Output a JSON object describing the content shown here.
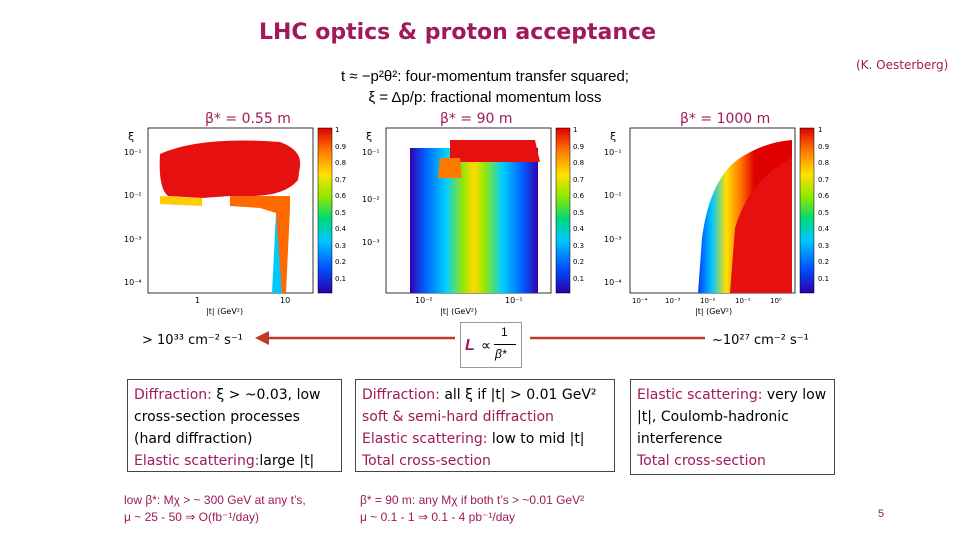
{
  "slide": {
    "title": "LHC optics & proton acceptance",
    "attribution": "(K. Oesterberg)",
    "definitions": {
      "line1": "t ≈ −p²θ²: four-momentum transfer squared;",
      "line2": "ξ = Δp/p: fractional momentum loss"
    },
    "beta_labels": [
      "β* = 0.55 m",
      "β* = 90 m",
      "β* = 1000 m"
    ],
    "luminosity": {
      "high": "> 10³³ cm⁻² s⁻¹",
      "low": "~10²⁷ cm⁻² s⁻¹",
      "formula_L": "L",
      "formula_prop": "∝",
      "formula_num": "1",
      "formula_den": "β*"
    },
    "panels": [
      {
        "lines": [
          {
            "colored": "Diffraction:",
            "rest": " ξ > ~0.03, low"
          },
          {
            "colored": "",
            "rest": "cross-section processes"
          },
          {
            "colored": "",
            "rest": "(hard diffraction)"
          },
          {
            "colored": "Elastic scattering:",
            "rest": "large |t|"
          }
        ]
      },
      {
        "lines": [
          {
            "colored": "Diffraction:",
            "rest": " all ξ if |t| > 0.01 GeV²"
          },
          {
            "colored": "",
            "rest": "soft & semi-hard diffraction"
          },
          {
            "colored": "Elastic scattering:",
            "rest": " low to mid |t|"
          },
          {
            "colored": "",
            "rest": "Total cross-section"
          }
        ]
      },
      {
        "lines": [
          {
            "colored": "Elastic scattering:",
            "rest": " very low"
          },
          {
            "colored": "",
            "rest": "|t|, Coulomb-hadronic"
          },
          {
            "colored": "",
            "rest": "interference"
          },
          {
            "colored": "",
            "rest": "Total cross-section"
          }
        ]
      }
    ],
    "footnotes": [
      {
        "line1": "low β*: Mχ > ~ 300 GeV at any t’s,",
        "line2": "μ ~ 25 - 50 ⇒ O(fb⁻¹/day)"
      },
      {
        "line1": "β* = 90 m: any Mχ if both t’s > ~0.01 GeV²",
        "line2": "μ ~ 0.1 - 1 ⇒ 0.1 - 4 pb⁻¹/day"
      }
    ],
    "page_number": "5",
    "plots": {
      "y_axis_label": "ξ",
      "x_axis_label": "|t|  (GeV²)",
      "colorbar_ticks": [
        "1",
        "0.9",
        "0.8",
        "0.7",
        "0.6",
        "0.5",
        "0.4",
        "0.3",
        "0.2",
        "0.1"
      ],
      "p1_y_ticks": [
        "10⁻¹",
        "10⁻²",
        "10⁻³",
        "10⁻⁴"
      ],
      "p1_x_ticks": [
        "1",
        "10"
      ],
      "p2_y_ticks": [
        "10⁻¹",
        "10⁻²",
        "10⁻³"
      ],
      "p2_x_ticks": [
        "10⁻²",
        "10⁻¹"
      ],
      "p3_y_ticks": [
        "10⁻¹",
        "10⁻²",
        "10⁻³",
        "10⁻⁴"
      ],
      "p3_x_ticks": [
        "10⁻⁴",
        "10⁻³",
        "10⁻²",
        "10⁻¹",
        "10⁰"
      ]
    }
  }
}
